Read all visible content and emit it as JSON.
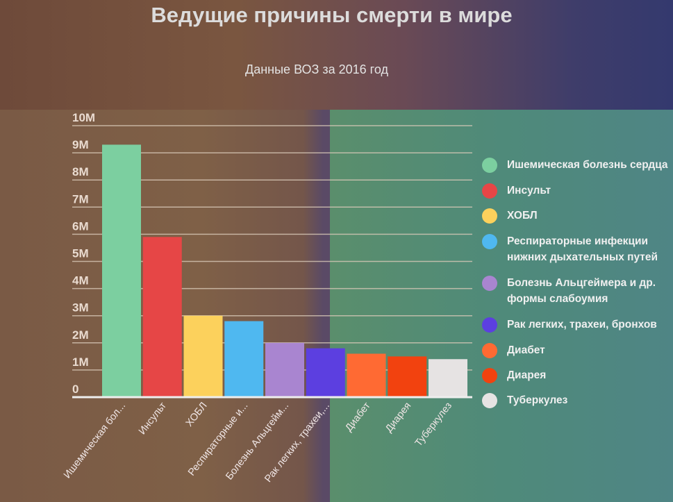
{
  "title": "Ведущие причины смерти в мире",
  "subtitle": "Данные ВОЗ за 2016 год",
  "chart_data": {
    "type": "bar",
    "title": "Ведущие причины смерти в мире",
    "subtitle": "Данные ВОЗ за 2016 год",
    "categories": [
      "Ишемическая бол...",
      "Инсульт",
      "ХОБЛ",
      "Респираторные и...",
      "Болезнь Альцгейм...",
      "Рак легких, трахеи,...",
      "Диабет",
      "Диарея",
      "Туберкулез"
    ],
    "values": [
      9.3,
      5.9,
      3.0,
      2.8,
      2.0,
      1.8,
      1.6,
      1.5,
      1.4
    ],
    "unit": "M",
    "ylim": [
      0,
      10
    ],
    "yticks": [
      "0",
      "1M",
      "2M",
      "3M",
      "4M",
      "5M",
      "6M",
      "7M",
      "8M",
      "9M",
      "10M"
    ],
    "grid": true,
    "legend_position": "right",
    "colors": [
      "#7ccfa0",
      "#e64646",
      "#fcd15c",
      "#4fb8f0",
      "#a985d0",
      "#5c3fe0",
      "#ff6a33",
      "#f2420f",
      "#e6e3e3"
    ],
    "legend": [
      "Ишемическая болезнь сердца",
      "Инсульт",
      "ХОБЛ",
      "Респираторные инфекции нижних дыхательных путей",
      "Болезнь Альцгеймера и др. формы слабоумия",
      "Рак легких, трахеи, бронхов",
      "Диабет",
      "Диарея",
      "Туберкулез"
    ]
  }
}
